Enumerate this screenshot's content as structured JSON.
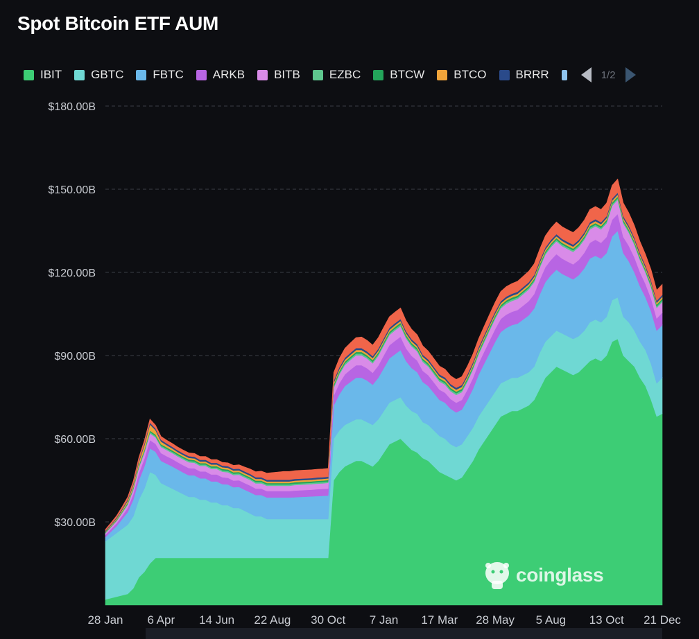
{
  "title": "Spot Bitcoin ETF AUM",
  "legend": {
    "items": [
      {
        "label": "IBIT",
        "color": "#3dcd75"
      },
      {
        "label": "GBTC",
        "color": "#6fd8d3"
      },
      {
        "label": "FBTC",
        "color": "#6ab8ea"
      },
      {
        "label": "ARKB",
        "color": "#b865e3"
      },
      {
        "label": "BITB",
        "color": "#d98be8"
      },
      {
        "label": "EZBC",
        "color": "#5ec78e"
      },
      {
        "label": "BTCW",
        "color": "#23a45a"
      },
      {
        "label": "BTCO",
        "color": "#f0a43a"
      },
      {
        "label": "BRRR",
        "color": "#2a4a8a"
      }
    ],
    "partial_color": "#8fc4ee",
    "page": "1/2"
  },
  "watermark": "coinglass",
  "chart_data": {
    "type": "area",
    "stacked": true,
    "title": "Spot Bitcoin ETF AUM",
    "ylim": [
      0,
      180
    ],
    "y_ticks": [
      "$30.00B",
      "$60.00B",
      "$90.00B",
      "$120.00B",
      "$150.00B",
      "$180.00B"
    ],
    "y_tick_values": [
      30,
      60,
      90,
      120,
      150,
      180
    ],
    "x_ticks": [
      "28 Jan",
      "6 Apr",
      "14 Jun",
      "22 Aug",
      "30 Oct",
      "7 Jan",
      "17 Mar",
      "28 May",
      "5 Aug",
      "13 Oct",
      "21 Dec"
    ],
    "x_tick_index": [
      0,
      10,
      20,
      30,
      40,
      50,
      60,
      70,
      80,
      90,
      100
    ],
    "grid": true,
    "legend_position": "top",
    "series": [
      {
        "name": "IBIT",
        "color": "#3dcd75",
        "values": [
          2,
          2.5,
          3,
          3.5,
          4,
          6,
          10,
          12,
          15,
          17,
          17,
          17,
          17,
          17,
          17,
          17,
          17,
          17,
          17,
          17,
          17,
          17,
          17,
          17,
          17,
          17,
          17,
          17,
          17,
          17,
          17,
          17,
          17,
          17,
          17,
          17,
          17,
          17,
          17,
          17,
          17,
          45,
          48,
          50,
          51,
          52,
          52,
          51,
          50,
          52,
          55,
          58,
          59,
          60,
          58,
          56,
          55,
          53,
          52,
          50,
          48,
          47,
          46,
          45,
          46,
          49,
          52,
          56,
          59,
          62,
          65,
          68,
          69,
          70,
          70,
          71,
          72,
          74,
          78,
          82,
          84,
          86,
          85,
          84,
          83,
          84,
          86,
          88,
          89,
          88,
          90,
          95,
          96,
          90,
          88,
          86,
          82,
          79,
          74,
          68,
          69
        ]
      },
      {
        "name": "GBTC",
        "color": "#6fd8d3",
        "values": [
          21,
          22,
          23,
          24,
          25,
          26,
          28,
          30,
          33,
          30,
          27,
          26,
          25,
          24,
          23,
          22,
          22,
          21,
          21,
          20,
          20,
          19,
          19,
          18,
          18,
          17,
          16,
          15,
          15,
          14,
          14,
          14,
          14,
          14,
          14,
          14,
          14,
          14,
          14,
          14,
          14,
          15,
          15,
          15,
          15,
          15,
          15,
          15,
          15,
          15,
          15,
          15,
          15,
          15,
          14,
          14,
          14,
          13,
          13,
          13,
          13,
          13,
          12,
          12,
          12,
          12,
          12,
          12,
          12,
          12,
          12,
          12,
          12,
          12,
          12,
          12,
          12,
          12,
          13,
          13,
          13,
          13,
          13,
          13,
          13,
          13,
          13,
          14,
          14,
          14,
          14,
          15,
          15,
          14,
          14,
          13,
          13,
          13,
          13,
          12,
          13
        ]
      },
      {
        "name": "FBTC",
        "color": "#6ab8ea",
        "values": [
          1.5,
          2,
          2.5,
          3.5,
          4.5,
          6,
          7,
          8,
          8.5,
          8.3,
          8,
          8,
          8,
          7.9,
          7.8,
          7.8,
          7.8,
          7.7,
          7.7,
          7.6,
          7.6,
          7.6,
          7.5,
          7.5,
          7.6,
          7.6,
          7.7,
          7.7,
          7.7,
          7.8,
          7.8,
          7.8,
          7.8,
          7.8,
          7.9,
          8,
          8.1,
          8.2,
          8.3,
          8.4,
          8.5,
          12,
          13,
          14,
          14.5,
          15,
          15,
          15,
          14.5,
          15,
          15.5,
          16,
          16.5,
          17,
          16,
          15.5,
          15,
          14.5,
          14,
          13.5,
          13,
          13,
          12.8,
          12.5,
          12.5,
          13,
          14,
          15,
          16,
          17,
          18,
          18.5,
          19,
          19,
          19.5,
          20,
          20.5,
          21,
          21,
          21.5,
          22,
          22,
          21.5,
          21.5,
          21.5,
          22,
          22.5,
          23,
          23,
          23,
          23,
          23,
          24,
          23,
          22,
          21,
          20,
          19,
          19,
          19,
          19
        ]
      },
      {
        "name": "ARKB",
        "color": "#b865e3",
        "values": [
          0.8,
          0.9,
          1,
          1.2,
          1.5,
          2,
          2.5,
          2.8,
          3,
          2.9,
          2.8,
          2.7,
          2.7,
          2.6,
          2.6,
          2.6,
          2.5,
          2.5,
          2.5,
          2.5,
          2.5,
          2.5,
          2.4,
          2.4,
          2.4,
          2.4,
          2.4,
          2.3,
          2.3,
          2.3,
          2.3,
          2.3,
          2.3,
          2.3,
          2.4,
          2.4,
          2.4,
          2.4,
          2.5,
          2.5,
          2.5,
          3.5,
          4,
          4.2,
          4.4,
          4.5,
          4.5,
          4.4,
          4.3,
          4.4,
          4.6,
          4.7,
          4.8,
          4.8,
          4.6,
          4.4,
          4.2,
          4,
          3.9,
          3.8,
          3.7,
          3.6,
          3.5,
          3.5,
          3.5,
          3.7,
          3.9,
          4.1,
          4.3,
          4.5,
          4.6,
          4.7,
          4.8,
          4.8,
          4.9,
          5,
          5.1,
          5.2,
          5.3,
          5.4,
          5.5,
          5.6,
          5.5,
          5.4,
          5.4,
          5.5,
          5.6,
          5.7,
          5.8,
          5.7,
          5.8,
          6,
          6.1,
          5.8,
          5.6,
          5.4,
          5.1,
          4.8,
          4.6,
          4.4,
          4.5
        ]
      },
      {
        "name": "BITB",
        "color": "#d98be8",
        "values": [
          0.6,
          0.7,
          0.8,
          1,
          1.2,
          1.6,
          2,
          2.2,
          2.4,
          2.3,
          2.2,
          2.2,
          2.1,
          2.1,
          2.1,
          2.1,
          2,
          2,
          2,
          2,
          2,
          2,
          2,
          2,
          2,
          2,
          2,
          1.9,
          1.9,
          1.9,
          1.9,
          1.9,
          1.9,
          1.9,
          2,
          2,
          2,
          2,
          2,
          2,
          2.1,
          2.8,
          3.2,
          3.4,
          3.5,
          3.6,
          3.6,
          3.5,
          3.4,
          3.5,
          3.6,
          3.7,
          3.8,
          3.8,
          3.6,
          3.4,
          3.3,
          3.2,
          3.1,
          3,
          2.9,
          2.9,
          2.8,
          2.8,
          2.8,
          2.9,
          3.1,
          3.2,
          3.4,
          3.6,
          3.7,
          3.8,
          3.9,
          3.9,
          4,
          4.1,
          4.2,
          4.3,
          4.4,
          4.5,
          4.6,
          4.6,
          4.5,
          4.5,
          4.5,
          4.6,
          4.7,
          4.8,
          4.8,
          4.8,
          4.9,
          5,
          5.1,
          4.9,
          4.7,
          4.5,
          4.3,
          4.1,
          3.9,
          3.8,
          3.8
        ]
      },
      {
        "name": "EZBC",
        "color": "#5ec78e",
        "values": [
          0.2,
          0.2,
          0.25,
          0.3,
          0.35,
          0.4,
          0.45,
          0.5,
          0.55,
          0.5,
          0.5,
          0.5,
          0.5,
          0.5,
          0.5,
          0.5,
          0.5,
          0.5,
          0.5,
          0.5,
          0.5,
          0.5,
          0.5,
          0.5,
          0.5,
          0.5,
          0.5,
          0.5,
          0.5,
          0.5,
          0.5,
          0.5,
          0.5,
          0.5,
          0.5,
          0.5,
          0.5,
          0.5,
          0.5,
          0.5,
          0.5,
          0.6,
          0.6,
          0.6,
          0.6,
          0.6,
          0.6,
          0.6,
          0.6,
          0.6,
          0.6,
          0.6,
          0.6,
          0.6,
          0.6,
          0.6,
          0.6,
          0.6,
          0.6,
          0.6,
          0.6,
          0.6,
          0.6,
          0.6,
          0.6,
          0.6,
          0.6,
          0.6,
          0.6,
          0.6,
          0.6,
          0.6,
          0.6,
          0.6,
          0.6,
          0.6,
          0.6,
          0.6,
          0.6,
          0.6,
          0.6,
          0.6,
          0.6,
          0.6,
          0.6,
          0.6,
          0.6,
          0.6,
          0.6,
          0.6,
          0.6,
          0.6,
          0.6,
          0.6,
          0.6,
          0.6,
          0.6,
          0.6,
          0.6,
          0.6,
          0.6
        ]
      },
      {
        "name": "BTCW",
        "color": "#23a45a",
        "values": [
          0.2,
          0.2,
          0.25,
          0.3,
          0.35,
          0.4,
          0.45,
          0.5,
          0.5,
          0.5,
          0.5,
          0.5,
          0.5,
          0.5,
          0.5,
          0.5,
          0.5,
          0.5,
          0.5,
          0.5,
          0.5,
          0.5,
          0.5,
          0.5,
          0.5,
          0.5,
          0.5,
          0.5,
          0.5,
          0.5,
          0.5,
          0.5,
          0.5,
          0.5,
          0.5,
          0.5,
          0.5,
          0.5,
          0.5,
          0.5,
          0.5,
          0.6,
          0.6,
          0.6,
          0.6,
          0.6,
          0.6,
          0.6,
          0.6,
          0.6,
          0.6,
          0.6,
          0.6,
          0.6,
          0.6,
          0.6,
          0.6,
          0.6,
          0.6,
          0.6,
          0.6,
          0.6,
          0.6,
          0.6,
          0.6,
          0.6,
          0.6,
          0.6,
          0.6,
          0.6,
          0.6,
          0.6,
          0.6,
          0.6,
          0.6,
          0.6,
          0.6,
          0.6,
          0.6,
          0.6,
          0.6,
          0.6,
          0.6,
          0.6,
          0.6,
          0.6,
          0.6,
          0.6,
          0.6,
          0.6,
          0.6,
          0.6,
          0.6,
          0.6,
          0.6,
          0.6,
          0.6,
          0.6,
          0.6,
          0.6,
          0.6
        ]
      },
      {
        "name": "BTCO",
        "color": "#f0a43a",
        "values": [
          0.2,
          0.3,
          0.4,
          0.5,
          0.7,
          0.9,
          1.2,
          1.6,
          2.2,
          1.6,
          1,
          0.8,
          0.7,
          0.6,
          0.6,
          0.6,
          0.6,
          0.6,
          0.6,
          0.6,
          0.6,
          0.6,
          0.6,
          0.6,
          0.6,
          0.6,
          0.6,
          0.6,
          0.6,
          0.6,
          0.6,
          0.6,
          0.6,
          0.6,
          0.6,
          0.6,
          0.6,
          0.6,
          0.6,
          0.6,
          0.6,
          0.7,
          0.7,
          0.7,
          0.7,
          0.7,
          0.7,
          0.7,
          0.7,
          0.7,
          0.7,
          0.7,
          0.7,
          0.7,
          0.7,
          0.7,
          0.7,
          0.7,
          0.7,
          0.7,
          0.7,
          0.7,
          0.7,
          0.7,
          0.7,
          0.7,
          0.7,
          0.7,
          0.7,
          0.7,
          0.7,
          0.7,
          0.7,
          0.7,
          0.7,
          0.7,
          0.7,
          0.7,
          0.7,
          0.7,
          0.7,
          0.7,
          0.7,
          0.7,
          0.7,
          0.7,
          0.7,
          0.7,
          0.7,
          0.7,
          0.7,
          0.7,
          0.7,
          0.7,
          0.7,
          0.7,
          0.7,
          0.7,
          0.7,
          0.7,
          0.7
        ]
      },
      {
        "name": "BRRR",
        "color": "#2a4a8a",
        "values": [
          0.3,
          0.3,
          0.35,
          0.4,
          0.45,
          0.5,
          0.55,
          0.6,
          0.65,
          0.6,
          0.6,
          0.6,
          0.6,
          0.6,
          0.6,
          0.6,
          0.6,
          0.6,
          0.6,
          0.6,
          0.6,
          0.6,
          0.6,
          0.6,
          0.6,
          0.6,
          0.6,
          0.6,
          0.6,
          0.6,
          0.6,
          0.6,
          0.6,
          0.6,
          0.6,
          0.6,
          0.6,
          0.6,
          0.6,
          0.6,
          0.6,
          0.7,
          0.7,
          0.7,
          0.7,
          0.7,
          0.7,
          0.7,
          0.7,
          0.7,
          0.7,
          0.7,
          0.7,
          0.7,
          0.7,
          0.7,
          0.7,
          0.7,
          0.7,
          0.7,
          0.7,
          0.7,
          0.7,
          0.7,
          0.7,
          0.7,
          0.7,
          0.7,
          0.7,
          0.7,
          0.7,
          0.7,
          0.7,
          0.7,
          0.7,
          0.7,
          0.7,
          0.7,
          0.7,
          0.7,
          0.7,
          0.7,
          0.7,
          0.7,
          0.7,
          0.7,
          0.7,
          0.7,
          0.7,
          0.7,
          0.7,
          0.7,
          0.7,
          0.7,
          0.7,
          0.7,
          0.7,
          0.7,
          0.7,
          0.7,
          0.7
        ]
      },
      {
        "color": "#f0654a",
        "values": [
          0.5,
          0.6,
          0.7,
          0.8,
          0.9,
          1,
          1.1,
          1.2,
          1.3,
          1.2,
          1.2,
          1.2,
          1.2,
          1.2,
          1.2,
          1.2,
          1.2,
          1.2,
          1.2,
          1.2,
          1.2,
          1.2,
          1.2,
          1.3,
          1.4,
          1.6,
          1.8,
          2,
          2.2,
          2.4,
          2.6,
          2.8,
          3,
          3,
          3,
          3,
          3,
          3,
          3,
          3,
          3,
          3,
          3.2,
          3.4,
          3.6,
          3.8,
          4,
          4,
          4,
          4,
          4,
          4,
          4,
          4,
          3.8,
          3.6,
          3.4,
          3.2,
          3,
          3,
          3,
          3,
          3,
          3,
          3,
          3,
          3,
          3.1,
          3.2,
          3.3,
          3.4,
          3.5,
          3.6,
          3.7,
          3.8,
          3.9,
          4,
          4,
          4.1,
          4.2,
          4.3,
          4.4,
          4.4,
          4.4,
          4.4,
          4.5,
          4.5,
          4.6,
          4.6,
          4.6,
          4.7,
          4.8,
          4.9,
          4.8,
          4.6,
          4.4,
          4.2,
          4,
          3.9,
          3.8,
          3.8
        ]
      }
    ]
  }
}
